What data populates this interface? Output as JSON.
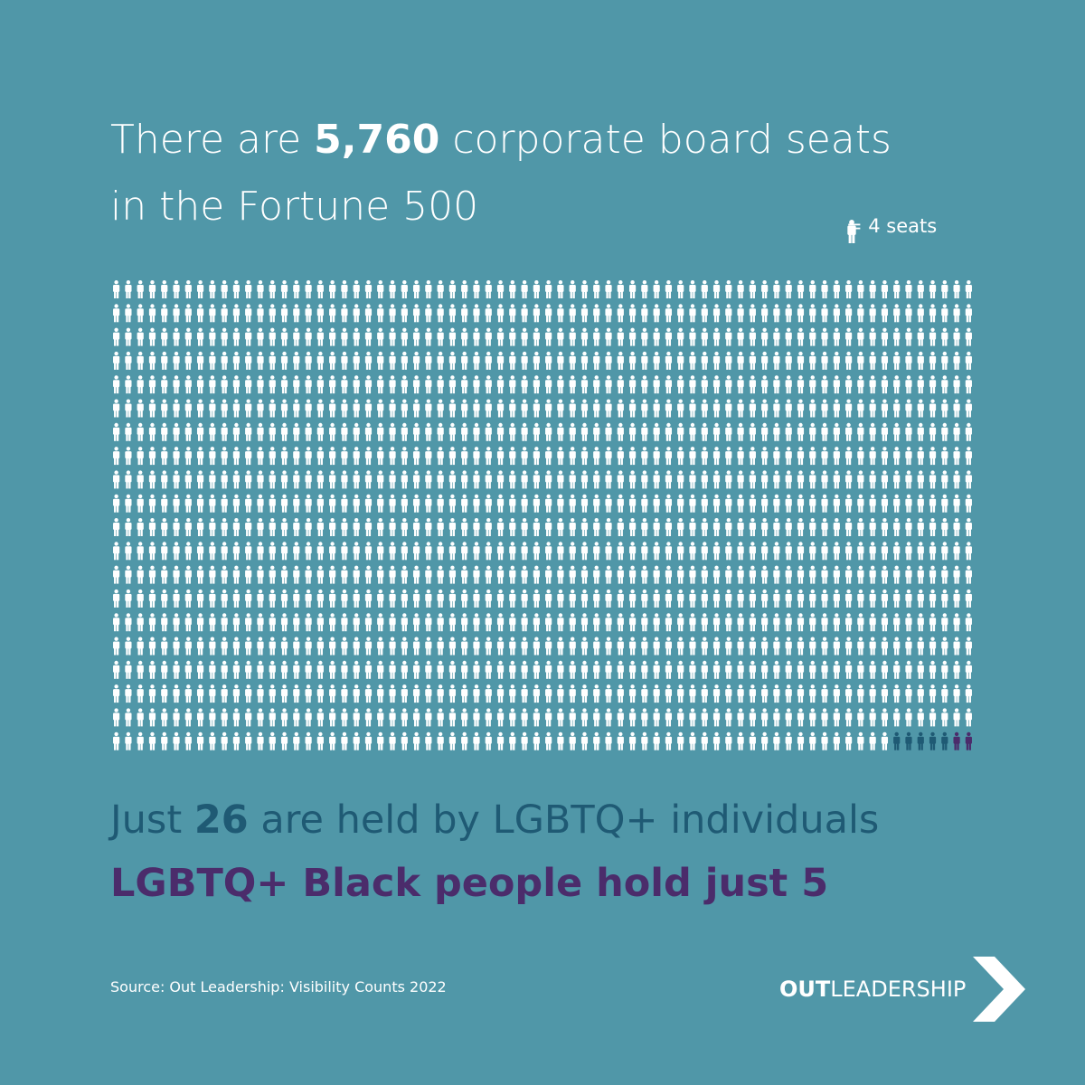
{
  "chart_data": {
    "type": "pictogram",
    "title_before": "There are",
    "total": {
      "value": 5760,
      "label": "5,760"
    },
    "title_after": "corporate board seats",
    "title_line2": "in the Fortune 500",
    "per_icon": {
      "value": 4,
      "label": "= 4 seats"
    },
    "lgbtq_before": "Just",
    "lgbtq": 26,
    "lgbtq_after": "are held by LGBTQ+ individuals",
    "black_before": "LGBTQ+ Black people hold just",
    "black": 5,
    "source": "Source: Out Leadership: Visibility Counts 2022",
    "logo_bold": "OUT",
    "logo_rest": "LEADERSHIP",
    "colors": {
      "background": "#5097a8",
      "icon": "#ffffff",
      "lgbtq": "#1f5a74",
      "black": "#4b2c6b"
    }
  }
}
